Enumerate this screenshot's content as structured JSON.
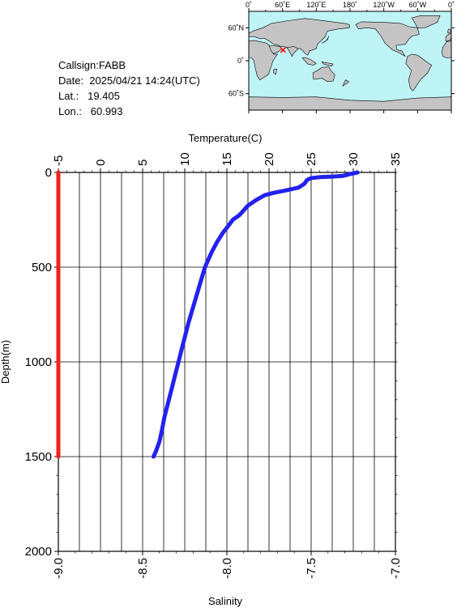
{
  "station": {
    "callsign": "Callsign:FABB",
    "date": "Date:  2025/04/21 14:24(UTC)",
    "lat": "Lat.:   19.405",
    "lon": "Lon.:   60.993"
  },
  "map": {
    "lon_labels": [
      "0˚",
      "60˚E",
      "120˚E",
      "180˚",
      "120˚W",
      "60˚W",
      "0˚"
    ],
    "lat_labels": [
      "60˚N",
      "0˚",
      "60˚S"
    ],
    "marker": {
      "lon": 60.993,
      "lat": 19.405
    },
    "colors": {
      "ocean": "#bff4f7",
      "land": "#c4c4c4",
      "marker": "#ff0000"
    }
  },
  "chart_data": {
    "type": "line",
    "title": "",
    "ylabel": "Depth(m)",
    "ylim": [
      0,
      2000
    ],
    "y_inverted": true,
    "y_ticks": [
      "0",
      "500",
      "1000",
      "1500",
      "2000"
    ],
    "x_top": {
      "label": "Temperature(C)",
      "lim": [
        -5,
        35
      ],
      "ticks": [
        "-5",
        "0",
        "5",
        "10",
        "15",
        "20",
        "25",
        "30",
        "35"
      ]
    },
    "x_bottom": {
      "label": "Salinity",
      "lim": [
        -9.0,
        -7.0
      ],
      "ticks": [
        "-9.0",
        "-8.5",
        "-8.0",
        "-7.5",
        "-7.0"
      ]
    },
    "grid": true,
    "series": [
      {
        "axis": "temperature",
        "color": "#2222ee",
        "points": [
          [
            30.5,
            0
          ],
          [
            29.5,
            10
          ],
          [
            28.8,
            18
          ],
          [
            27.5,
            22
          ],
          [
            26.0,
            25
          ],
          [
            25.0,
            30
          ],
          [
            24.5,
            40
          ],
          [
            24.2,
            60
          ],
          [
            23.5,
            80
          ],
          [
            22.0,
            95
          ],
          [
            20.5,
            108
          ],
          [
            19.5,
            120
          ],
          [
            18.5,
            145
          ],
          [
            17.5,
            175
          ],
          [
            17.0,
            200
          ],
          [
            16.5,
            225
          ],
          [
            15.7,
            250
          ],
          [
            15.2,
            280
          ],
          [
            14.5,
            320
          ],
          [
            13.8,
            370
          ],
          [
            13.2,
            420
          ],
          [
            12.8,
            460
          ],
          [
            12.4,
            500
          ],
          [
            12.0,
            560
          ],
          [
            11.6,
            620
          ],
          [
            11.2,
            680
          ],
          [
            10.8,
            740
          ],
          [
            10.4,
            800
          ],
          [
            10.0,
            870
          ],
          [
            9.6,
            940
          ],
          [
            9.2,
            1010
          ],
          [
            8.8,
            1080
          ],
          [
            8.4,
            1150
          ],
          [
            8.0,
            1220
          ],
          [
            7.6,
            1290
          ],
          [
            7.3,
            1360
          ],
          [
            7.0,
            1420
          ],
          [
            6.6,
            1470
          ],
          [
            6.3,
            1500
          ]
        ]
      },
      {
        "axis": "salinity",
        "color": "#ee2222",
        "points": [
          [
            -9.0,
            0
          ],
          [
            -9.0,
            1500
          ]
        ]
      }
    ]
  }
}
